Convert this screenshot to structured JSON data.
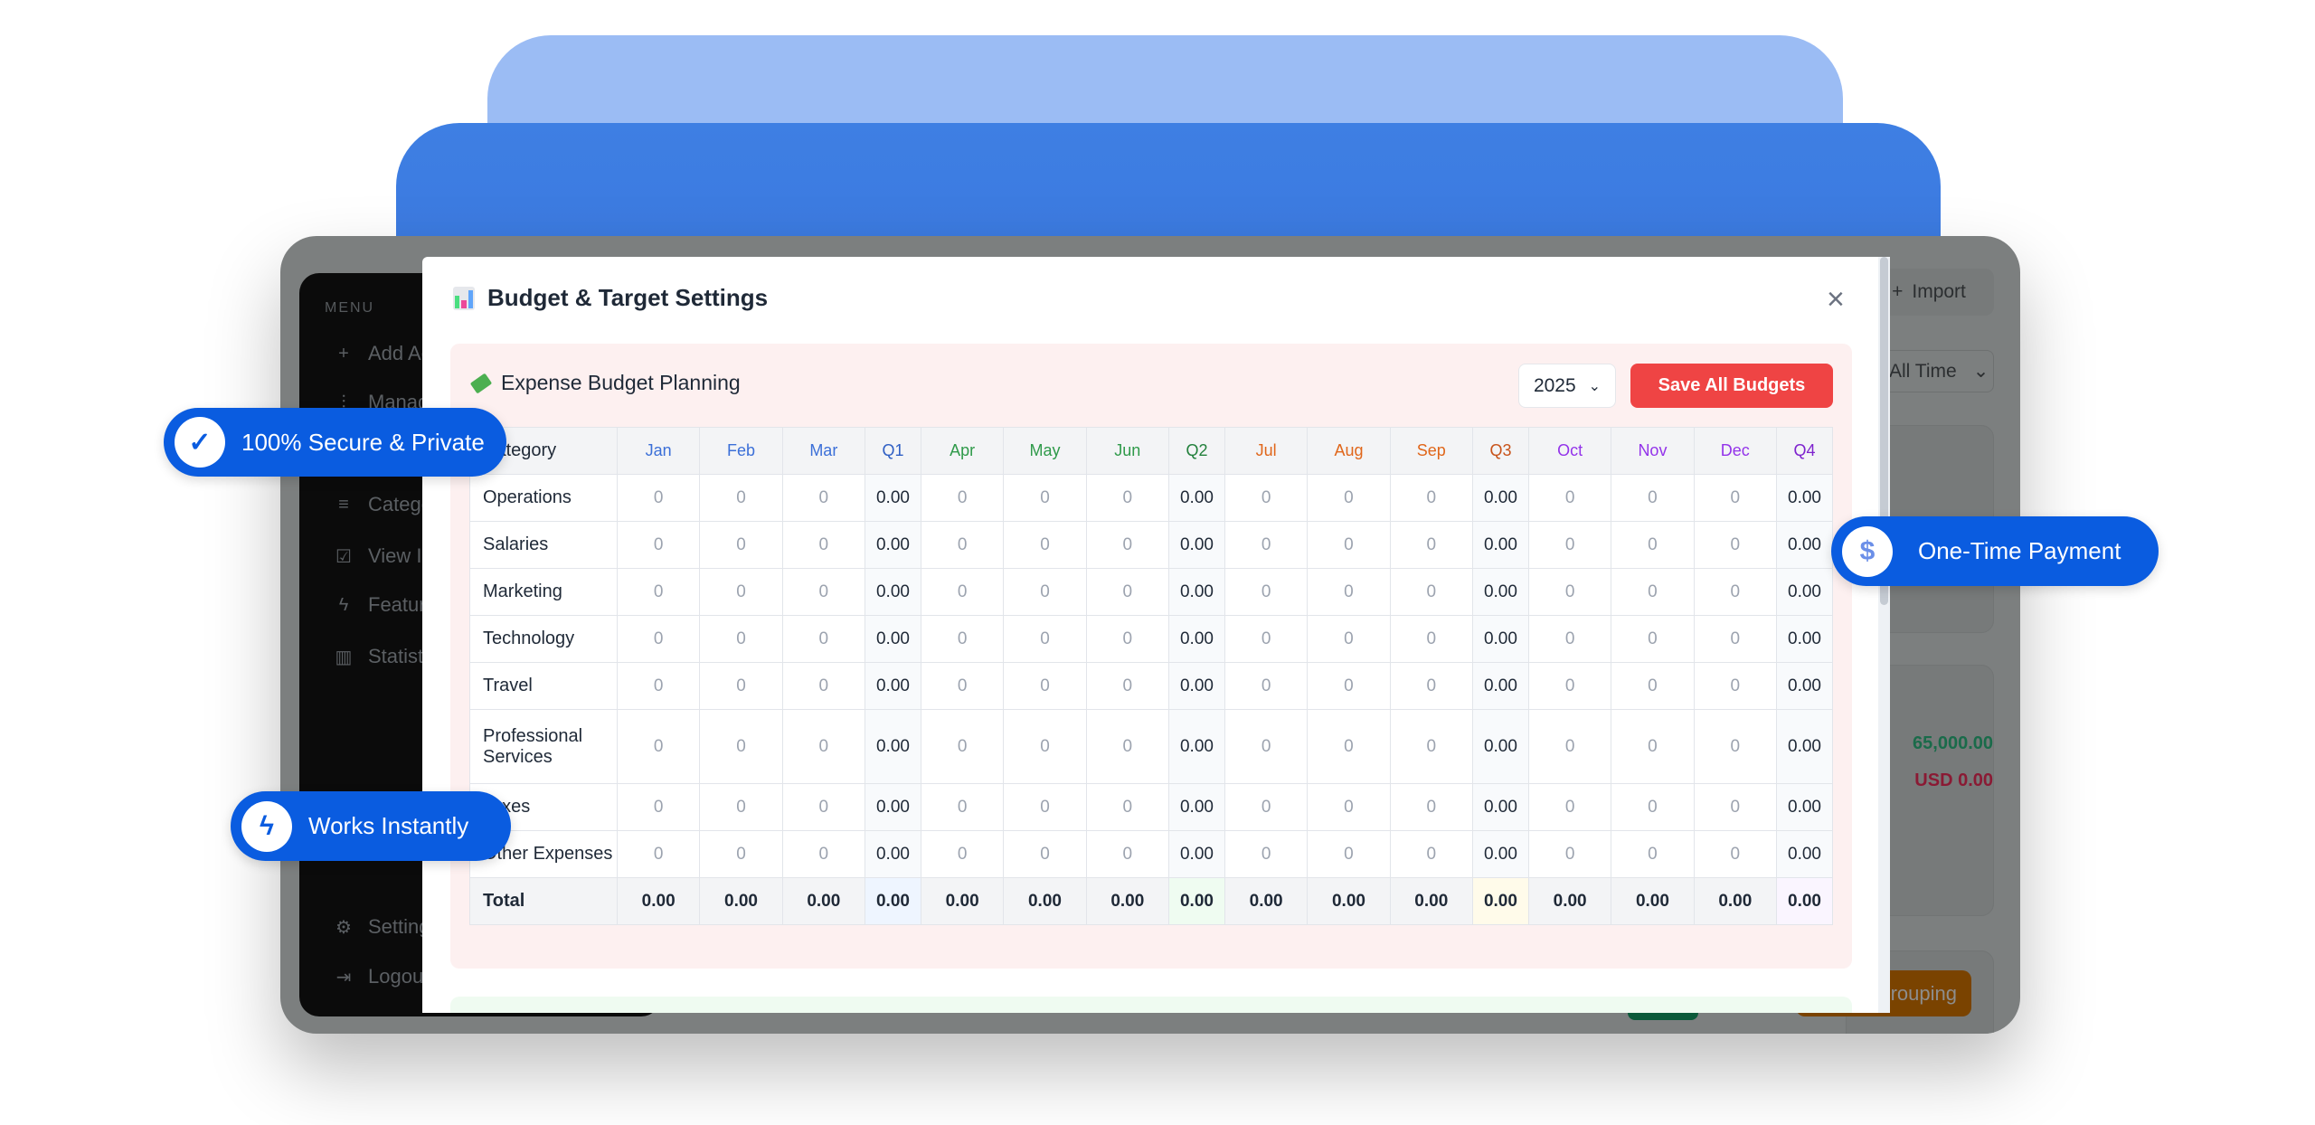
{
  "background_app": {
    "sidebar": {
      "menu_label": "MENU",
      "items": [
        {
          "label": "Add Ac",
          "icon": "plus-icon"
        },
        {
          "label": "Manag",
          "icon": "sliders-icon"
        },
        {
          "label": "Catego",
          "icon": "list-icon"
        },
        {
          "label": "View In",
          "icon": "chart-check-icon"
        },
        {
          "label": "Feature",
          "icon": "bolt-icon"
        },
        {
          "label": "Statistic",
          "icon": "bar-chart-icon"
        },
        {
          "label": "Setting",
          "icon": "gear-icon"
        },
        {
          "label": "Logout",
          "icon": "logout-icon"
        }
      ]
    },
    "import_label": "Import",
    "period_select": "All Time",
    "income_value": "65,000.00",
    "expense_value": "USD 0.00",
    "grouping_label": "rouping"
  },
  "modal": {
    "title": "Budget & Target Settings",
    "title_icon": "bar-chart-emoji",
    "close_icon": "close-icon",
    "section": {
      "title": "Expense Budget Planning",
      "icon": "money-emoji",
      "year": "2025",
      "save_label": "Save All Budgets",
      "columns": [
        {
          "label": "Category",
          "color": "#1f2937"
        },
        {
          "label": "Jan",
          "color": "#3b6fd8"
        },
        {
          "label": "Feb",
          "color": "#3b6fd8"
        },
        {
          "label": "Mar",
          "color": "#3b6fd8"
        },
        {
          "label": "Q1",
          "color": "#2f5fc4",
          "quarter": true
        },
        {
          "label": "Apr",
          "color": "#2f9a4a"
        },
        {
          "label": "May",
          "color": "#2f9a4a"
        },
        {
          "label": "Jun",
          "color": "#2f9a4a"
        },
        {
          "label": "Q2",
          "color": "#22803c",
          "quarter": true
        },
        {
          "label": "Jul",
          "color": "#e0661a"
        },
        {
          "label": "Aug",
          "color": "#e0661a"
        },
        {
          "label": "Sep",
          "color": "#e0661a"
        },
        {
          "label": "Q3",
          "color": "#c8531a",
          "quarter": true
        },
        {
          "label": "Oct",
          "color": "#9333ea"
        },
        {
          "label": "Nov",
          "color": "#9333ea"
        },
        {
          "label": "Dec",
          "color": "#9333ea"
        },
        {
          "label": "Q4",
          "color": "#7e22ce",
          "quarter": true
        }
      ],
      "rows": [
        {
          "category": "Operations",
          "cells": [
            "0",
            "0",
            "0",
            "0.00",
            "0",
            "0",
            "0",
            "0.00",
            "0",
            "0",
            "0",
            "0.00",
            "0",
            "0",
            "0",
            "0.00"
          ]
        },
        {
          "category": "Salaries",
          "cells": [
            "0",
            "0",
            "0",
            "0.00",
            "0",
            "0",
            "0",
            "0.00",
            "0",
            "0",
            "0",
            "0.00",
            "0",
            "0",
            "0",
            "0.00"
          ]
        },
        {
          "category": "Marketing",
          "cells": [
            "0",
            "0",
            "0",
            "0.00",
            "0",
            "0",
            "0",
            "0.00",
            "0",
            "0",
            "0",
            "0.00",
            "0",
            "0",
            "0",
            "0.00"
          ]
        },
        {
          "category": "Technology",
          "cells": [
            "0",
            "0",
            "0",
            "0.00",
            "0",
            "0",
            "0",
            "0.00",
            "0",
            "0",
            "0",
            "0.00",
            "0",
            "0",
            "0",
            "0.00"
          ]
        },
        {
          "category": "Travel",
          "cells": [
            "0",
            "0",
            "0",
            "0.00",
            "0",
            "0",
            "0",
            "0.00",
            "0",
            "0",
            "0",
            "0.00",
            "0",
            "0",
            "0",
            "0.00"
          ]
        },
        {
          "category": "Professional Services",
          "cells": [
            "0",
            "0",
            "0",
            "0.00",
            "0",
            "0",
            "0",
            "0.00",
            "0",
            "0",
            "0",
            "0.00",
            "0",
            "0",
            "0",
            "0.00"
          ]
        },
        {
          "category": "Taxes",
          "cells": [
            "0",
            "0",
            "0",
            "0.00",
            "0",
            "0",
            "0",
            "0.00",
            "0",
            "0",
            "0",
            "0.00",
            "0",
            "0",
            "0",
            "0.00"
          ]
        },
        {
          "category": "Other Expenses",
          "cells": [
            "0",
            "0",
            "0",
            "0.00",
            "0",
            "0",
            "0",
            "0.00",
            "0",
            "0",
            "0",
            "0.00",
            "0",
            "0",
            "0",
            "0.00"
          ]
        }
      ],
      "total": {
        "category": "Total",
        "cells": [
          "0.00",
          "0.00",
          "0.00",
          "0.00",
          "0.00",
          "0.00",
          "0.00",
          "0.00",
          "0.00",
          "0.00",
          "0.00",
          "0.00",
          "0.00",
          "0.00",
          "0.00",
          "0.00"
        ]
      },
      "quarter_total_colors": [
        "#eef5ff",
        "#effcf1",
        "#fffbea",
        "#faf5ff"
      ]
    }
  },
  "badges": {
    "secure": "100% Secure & Private",
    "instant": "Works Instantly",
    "payment": "One-Time Payment"
  }
}
